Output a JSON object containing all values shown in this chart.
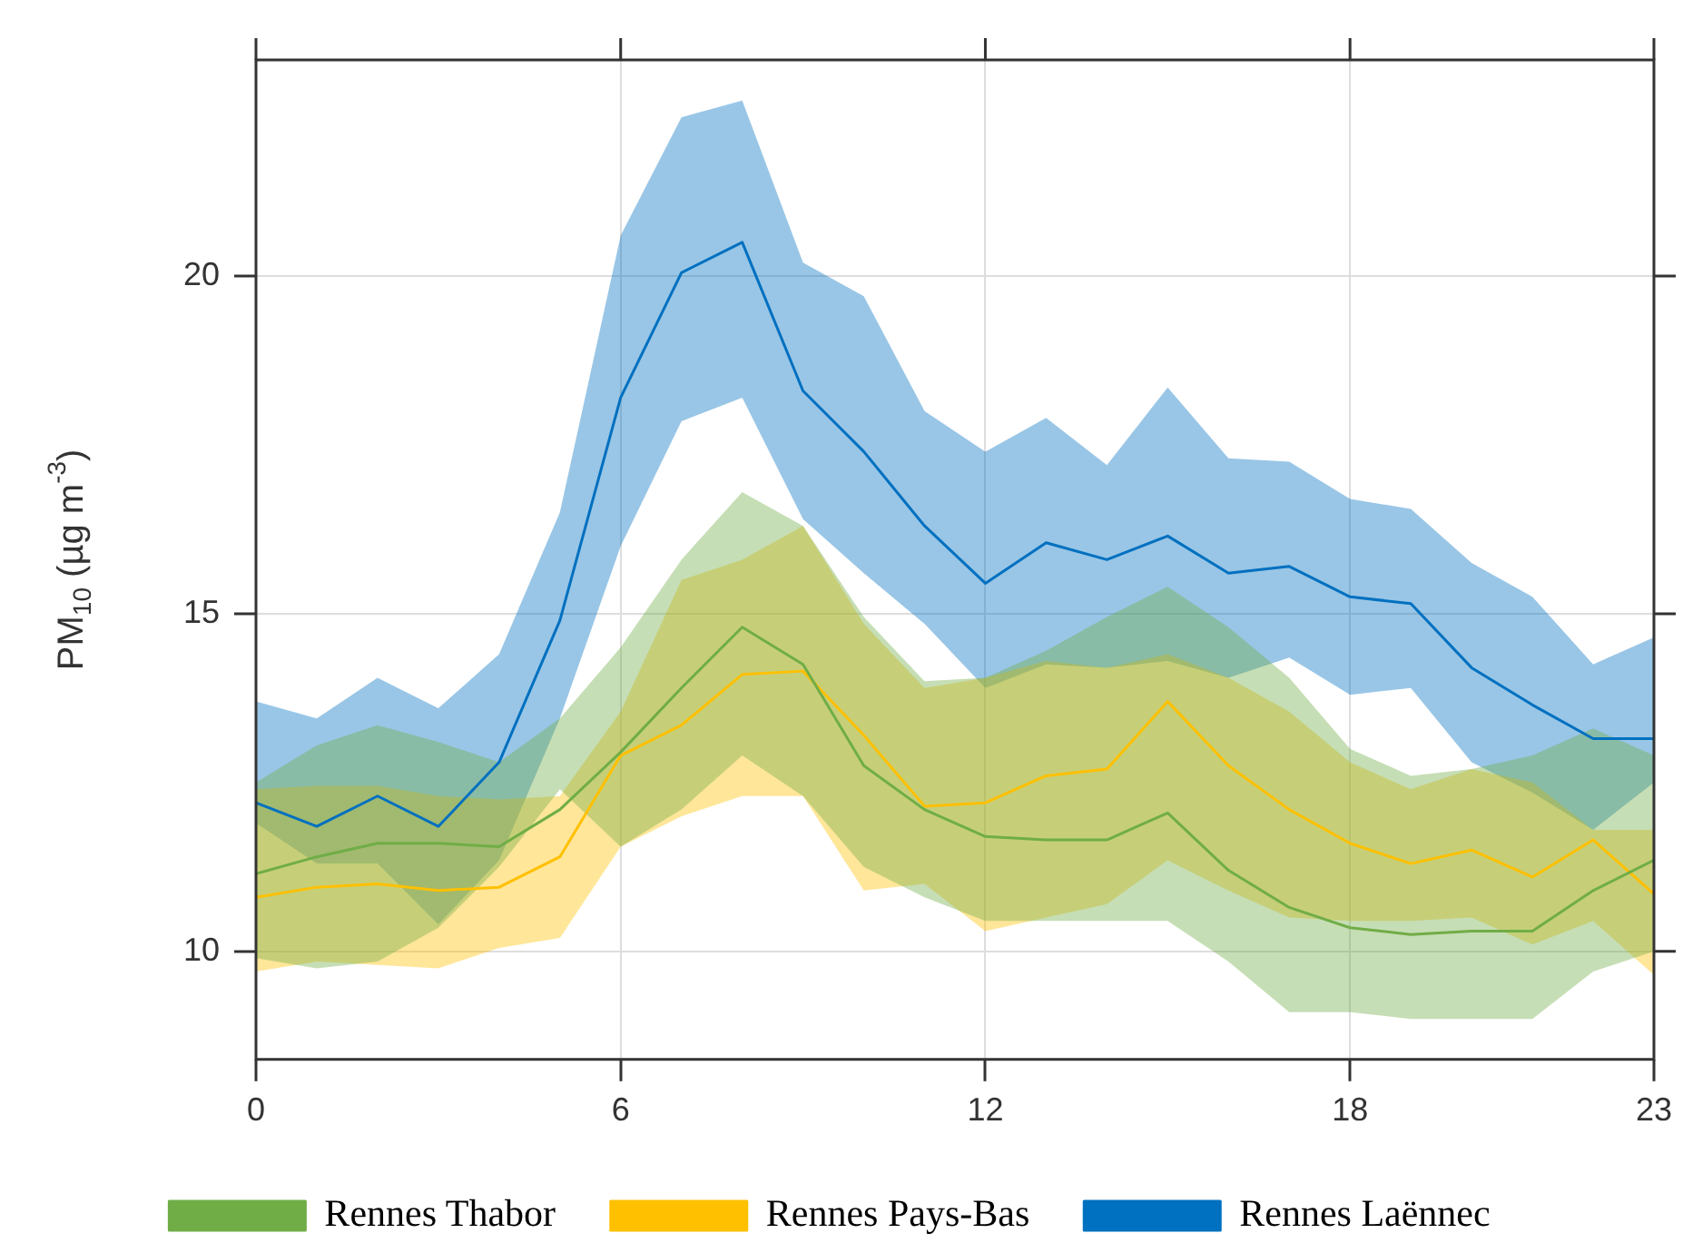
{
  "chart_data": {
    "type": "line",
    "ylabel": "PM$_{10}$ (µg m$^{-3}$)",
    "x": [
      0,
      1,
      2,
      3,
      4,
      5,
      6,
      7,
      8,
      9,
      10,
      11,
      12,
      13,
      14,
      15,
      16,
      17,
      18,
      19,
      20,
      21,
      22,
      23
    ],
    "xlim": [
      0,
      23
    ],
    "xticks": [
      0,
      6,
      12,
      18,
      23
    ],
    "ylim": [
      8.4,
      23.2
    ],
    "yticks": [
      10,
      15,
      20
    ],
    "grid": true,
    "legend": "bottom",
    "series": [
      {
        "name": "Rennes Thabor",
        "color": "#70ad47",
        "values": [
          11.15,
          11.4,
          11.6,
          11.6,
          11.55,
          12.1,
          12.95,
          13.9,
          14.8,
          14.25,
          12.75,
          12.1,
          11.7,
          11.65,
          11.65,
          12.05,
          11.2,
          10.65,
          10.35,
          10.25,
          10.3,
          10.3,
          10.9,
          11.35
        ],
        "upper": [
          12.5,
          13.05,
          13.35,
          13.1,
          12.8,
          13.45,
          14.5,
          15.8,
          16.8,
          16.3,
          14.95,
          14.0,
          14.05,
          14.45,
          14.95,
          15.4,
          14.8,
          14.05,
          13.0,
          12.6,
          12.7,
          12.9,
          13.3,
          12.9
        ],
        "lower": [
          9.9,
          9.75,
          9.85,
          10.35,
          11.25,
          12.4,
          11.55,
          12.1,
          12.9,
          12.3,
          11.25,
          10.8,
          10.45,
          10.45,
          10.45,
          10.45,
          9.85,
          9.1,
          9.1,
          9.0,
          9.0,
          9.0,
          9.7,
          10.0
        ]
      },
      {
        "name": "Rennes Pays-Bas",
        "color": "#ffc000",
        "values": [
          10.8,
          10.95,
          11.0,
          10.9,
          10.95,
          11.4,
          12.9,
          13.35,
          14.1,
          14.15,
          13.2,
          12.15,
          12.2,
          12.6,
          12.7,
          13.7,
          12.75,
          12.1,
          11.6,
          11.3,
          11.5,
          11.1,
          11.65,
          10.85
        ],
        "upper": [
          12.4,
          12.45,
          12.45,
          12.3,
          12.25,
          12.3,
          13.55,
          15.5,
          15.8,
          16.3,
          14.85,
          13.9,
          14.05,
          14.3,
          14.2,
          14.4,
          14.05,
          13.55,
          12.8,
          12.4,
          12.7,
          12.5,
          11.8,
          11.8
        ],
        "lower": [
          9.7,
          9.85,
          9.8,
          9.75,
          10.05,
          10.2,
          11.55,
          12.0,
          12.3,
          12.3,
          10.9,
          11.0,
          10.3,
          10.5,
          10.7,
          11.35,
          10.9,
          10.5,
          10.45,
          10.45,
          10.5,
          10.1,
          10.45,
          9.65
        ]
      },
      {
        "name": "Rennes Laënnec",
        "color": "#0070c0",
        "values": [
          12.2,
          11.85,
          12.3,
          11.85,
          12.8,
          14.9,
          18.2,
          20.05,
          20.5,
          18.3,
          17.4,
          16.3,
          15.45,
          16.05,
          15.8,
          16.15,
          15.6,
          15.7,
          15.25,
          15.15,
          14.2,
          13.65,
          13.15,
          13.15
        ],
        "upper": [
          13.7,
          13.45,
          14.05,
          13.6,
          14.4,
          16.5,
          20.6,
          22.35,
          22.6,
          20.2,
          19.7,
          18.0,
          17.4,
          17.9,
          17.2,
          18.35,
          17.3,
          17.25,
          16.7,
          16.55,
          15.75,
          15.25,
          14.25,
          14.65
        ],
        "lower": [
          11.9,
          11.3,
          11.3,
          10.4,
          11.35,
          13.45,
          16.0,
          17.85,
          18.2,
          16.4,
          15.6,
          14.85,
          13.9,
          14.25,
          14.2,
          14.3,
          14.05,
          14.35,
          13.8,
          13.9,
          12.8,
          12.35,
          11.8,
          12.5
        ]
      }
    ]
  }
}
